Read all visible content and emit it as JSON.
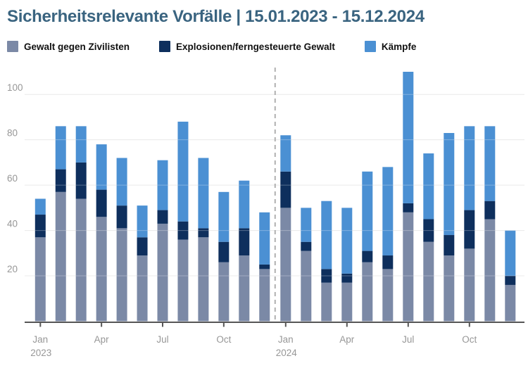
{
  "title": "Sicherheitsrelevante Vorfälle | 15.01.2023 - 15.12.2024",
  "legend": {
    "items": [
      {
        "label": "Gewalt gegen Zivilisten",
        "color": "#7b89a6"
      },
      {
        "label": "Explosionen/ferngesteuerte Gewalt",
        "color": "#0e2f5d"
      },
      {
        "label": "Kämpfe",
        "color": "#4b90d3"
      }
    ]
  },
  "colors": {
    "title": "#3a6480",
    "axis_label": "#979797",
    "axis_line": "#565656",
    "gridline": "#e3e3e3",
    "year_separator": "#b0b0b0",
    "background": "#ffffff"
  },
  "chart_data": {
    "type": "bar",
    "stacked": true,
    "title": "Sicherheitsrelevante Vorfälle | 15.01.2023 - 15.12.2024",
    "xlabel": "",
    "ylabel": "",
    "ylim": [
      0,
      115
    ],
    "yticks": [
      20,
      40,
      60,
      80,
      100
    ],
    "grid": "horizontal",
    "legend_position": "top",
    "categories": [
      "Jan 2023",
      "Feb 2023",
      "Mar 2023",
      "Apr 2023",
      "May 2023",
      "Jun 2023",
      "Jul 2023",
      "Aug 2023",
      "Sep 2023",
      "Oct 2023",
      "Nov 2023",
      "Dec 2023",
      "Jan 2024",
      "Feb 2024",
      "Mar 2024",
      "Apr 2024",
      "May 2024",
      "Jun 2024",
      "Jul 2024",
      "Aug 2024",
      "Sep 2024",
      "Oct 2024",
      "Nov 2024",
      "Dec 2024"
    ],
    "series": [
      {
        "name": "Gewalt gegen Zivilisten",
        "color": "#7b89a6",
        "values": [
          37,
          57,
          54,
          46,
          41,
          29,
          43,
          36,
          37,
          26,
          29,
          23,
          50,
          31,
          17,
          17,
          26,
          23,
          48,
          35,
          29,
          32,
          45,
          16
        ]
      },
      {
        "name": "Explosionen/ferngesteuerte Gewalt",
        "color": "#0e2f5d",
        "values": [
          10,
          10,
          16,
          12,
          10,
          8,
          6,
          8,
          4,
          9,
          12,
          2,
          16,
          4,
          6,
          4,
          5,
          6,
          4,
          10,
          9,
          17,
          8,
          4
        ]
      },
      {
        "name": "Kämpfe",
        "color": "#4b90d3",
        "values": [
          7,
          19,
          16,
          20,
          21,
          14,
          22,
          44,
          31,
          22,
          21,
          23,
          16,
          15,
          30,
          29,
          35,
          39,
          58,
          29,
          45,
          37,
          33,
          20
        ]
      }
    ],
    "x_ticks": [
      {
        "index": 0,
        "label": "Jan",
        "sublabel": "2023"
      },
      {
        "index": 3,
        "label": "Apr"
      },
      {
        "index": 6,
        "label": "Jul"
      },
      {
        "index": 9,
        "label": "Oct"
      },
      {
        "index": 12,
        "label": "Jan",
        "sublabel": "2024"
      },
      {
        "index": 15,
        "label": "Apr"
      },
      {
        "index": 18,
        "label": "Jul"
      },
      {
        "index": 21,
        "label": "Oct"
      }
    ],
    "separator_after_index": 11
  }
}
